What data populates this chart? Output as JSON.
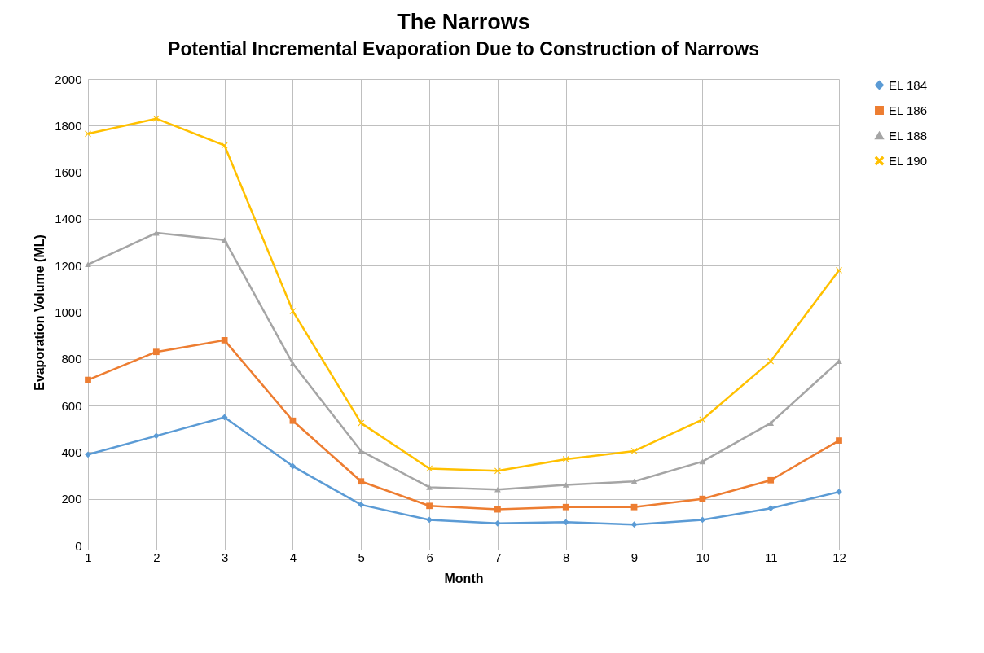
{
  "chart_data": {
    "type": "line",
    "title": "The Narrows",
    "subtitle": "Potential Incremental Evaporation Due to Construction of Narrows",
    "xlabel": "Month",
    "ylabel": "Evaporation Volume (ML)",
    "x": [
      1,
      2,
      3,
      4,
      5,
      6,
      7,
      8,
      9,
      10,
      11,
      12
    ],
    "xlim": [
      1,
      12
    ],
    "xticks": [
      1,
      2,
      3,
      4,
      5,
      6,
      7,
      8,
      9,
      10,
      11,
      12
    ],
    "series": [
      {
        "name": "EL 184",
        "color": "#5b9bd5",
        "marker": "diamond",
        "values": [
          390,
          470,
          550,
          340,
          175,
          110,
          95,
          100,
          90,
          110,
          160,
          230
        ]
      },
      {
        "name": "EL 186",
        "color": "#ed7d31",
        "marker": "square",
        "values": [
          710,
          830,
          880,
          535,
          275,
          170,
          155,
          165,
          165,
          200,
          280,
          450
        ]
      },
      {
        "name": "EL 188",
        "color": "#a5a5a5",
        "marker": "triangle",
        "values": [
          1205,
          1340,
          1310,
          780,
          405,
          250,
          240,
          260,
          275,
          360,
          525,
          790
        ]
      },
      {
        "name": "EL 190",
        "color": "#ffc000",
        "marker": "cross",
        "values": [
          1765,
          1830,
          1715,
          1005,
          525,
          330,
          320,
          370,
          405,
          540,
          790,
          1180
        ]
      }
    ],
    "ylim": [
      0,
      2000
    ],
    "yticks": [
      0,
      200,
      400,
      600,
      800,
      1000,
      1200,
      1400,
      1600,
      1800,
      2000
    ],
    "grid": true,
    "legend": "right"
  }
}
